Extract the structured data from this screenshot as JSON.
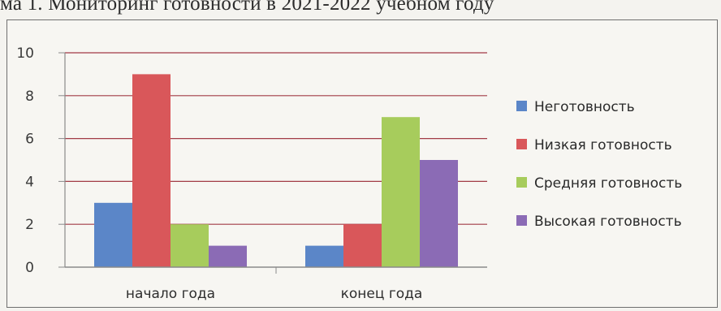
{
  "caption": "ма 1. Мониторинг готовности в 2021-2022 учебном году",
  "chart_data": {
    "type": "bar",
    "categories": [
      "начало года",
      "конец года"
    ],
    "series": [
      {
        "name": "Неготовность",
        "color": "#5b86c8",
        "values": [
          3,
          1
        ]
      },
      {
        "name": "Низкая готовность",
        "color": "#d9575a",
        "values": [
          9,
          2
        ]
      },
      {
        "name": "Средняя готовность",
        "color": "#a7cc5c",
        "values": [
          2,
          7
        ]
      },
      {
        "name": "Высокая готовность",
        "color": "#8b6bb5",
        "values": [
          1,
          5
        ]
      }
    ],
    "ylim": [
      0,
      10
    ],
    "yticks": [
      0,
      2,
      4,
      6,
      8,
      10
    ],
    "grid": true,
    "legend": "right"
  }
}
